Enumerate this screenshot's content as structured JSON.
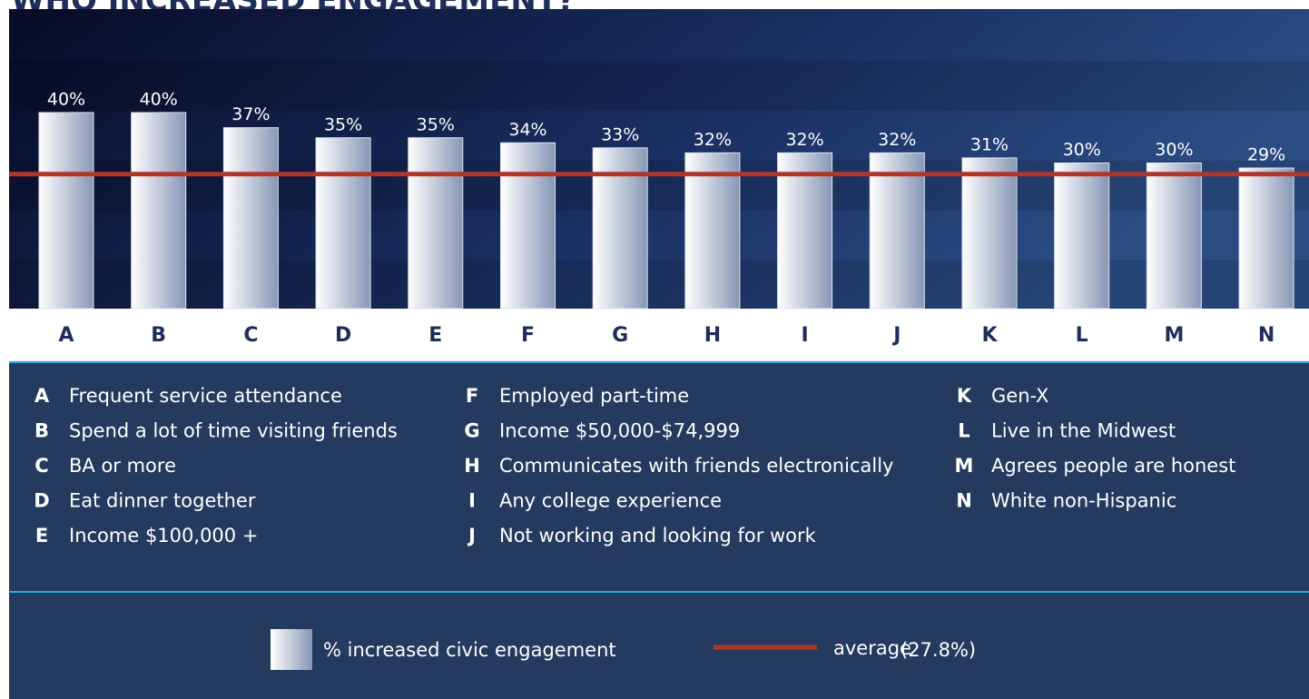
{
  "chart_data": {
    "type": "bar",
    "title": "WHO INCREASED ENGAGEMENT?",
    "categories": [
      "A",
      "B",
      "C",
      "D",
      "E",
      "F",
      "G",
      "H",
      "I",
      "J",
      "K",
      "L",
      "M",
      "N"
    ],
    "descriptions": [
      "Frequent service attendance",
      "Spend a lot of time visiting friends",
      "BA or more",
      "Eat dinner together",
      "Income $100,000 +",
      "Employed part-time",
      "Income $50,000-$74,999",
      "Communicates with friends electronically",
      "Any college experience",
      "Not working and looking for work",
      "Gen-X",
      "Live in the Midwest",
      "Agrees people are honest",
      "White non-Hispanic"
    ],
    "series": [
      {
        "name": "% increased civic engagement",
        "color": "#dde5f0",
        "values": [
          40,
          40,
          37,
          35,
          35,
          34,
          33,
          32,
          32,
          32,
          31,
          30,
          30,
          29
        ],
        "value_labels": [
          "40%",
          "40%",
          "37%",
          "35%",
          "35%",
          "34%",
          "33%",
          "32%",
          "32%",
          "32%",
          "31%",
          "30%",
          "30%",
          "29%"
        ]
      }
    ],
    "average": {
      "name": "average",
      "value": 27.8,
      "label": "(27.8%)",
      "color": "#b0362c"
    }
  }
}
